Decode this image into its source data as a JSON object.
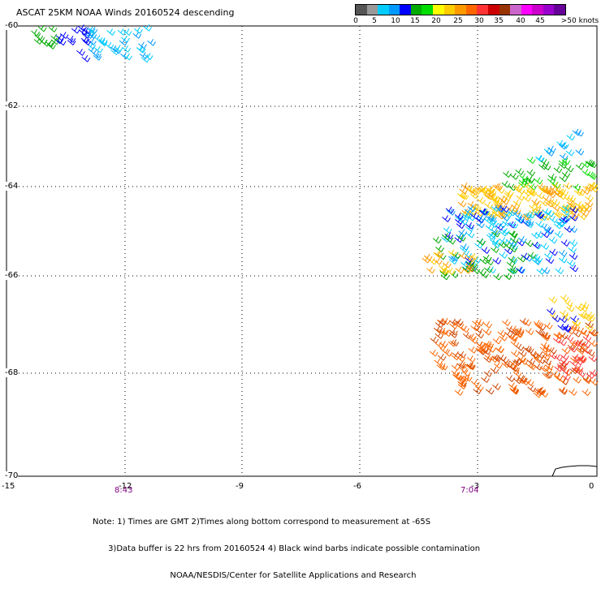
{
  "title": "ASCAT 25KM NOAA Winds 20160524 descending",
  "colorbar": {
    "colors": [
      "#555555",
      "#999999",
      "#00ccff",
      "#0099ff",
      "#0000ff",
      "#00aa00",
      "#00dd00",
      "#ffff00",
      "#ffcc00",
      "#ff9900",
      "#ff6600",
      "#ff3333",
      "#cc0000",
      "#993300",
      "#cc66cc",
      "#ff00ff",
      "#cc00cc",
      "#9900cc",
      "#660099"
    ],
    "labels": [
      "0",
      "5",
      "10",
      "15",
      "20",
      "25",
      "30",
      "35",
      "40",
      "45",
      ">50 knots"
    ]
  },
  "y_ticks": [
    "-60",
    "-62",
    "-64",
    "-66",
    "-68",
    "-70"
  ],
  "x_ticks": [
    "-15",
    "-12",
    "-9",
    "-6",
    "-3",
    "0"
  ],
  "time_labels": [
    "8:43",
    "7:04"
  ],
  "notes": [
    "Note: 1) Times are GMT 2)Times along bottom correspond to measurement at -65S",
    "      3)Data buffer is 22 hrs from 20160524 4) Black wind barbs indicate possible contamination",
    "                              NOAA/NESDIS/Center for Satellite Applications and Research"
  ]
}
